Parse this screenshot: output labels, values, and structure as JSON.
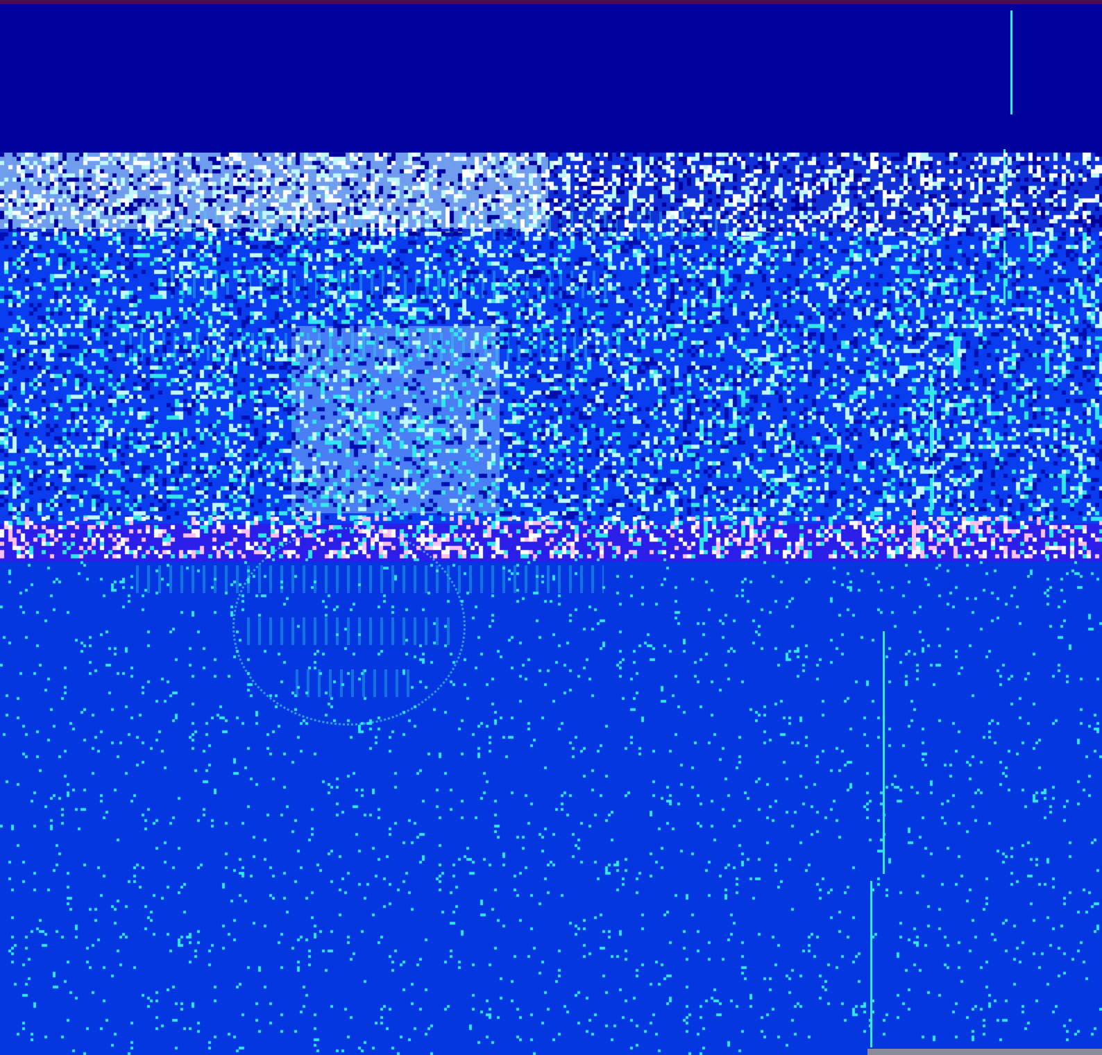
{
  "colors": {
    "top_dark": "#00009c",
    "main_blue": "#0437e0",
    "cyan": "#34e6f0",
    "light_cyan": "#bff8ff",
    "pink": "#ffc0f0",
    "grey": "#8a8a9a"
  }
}
